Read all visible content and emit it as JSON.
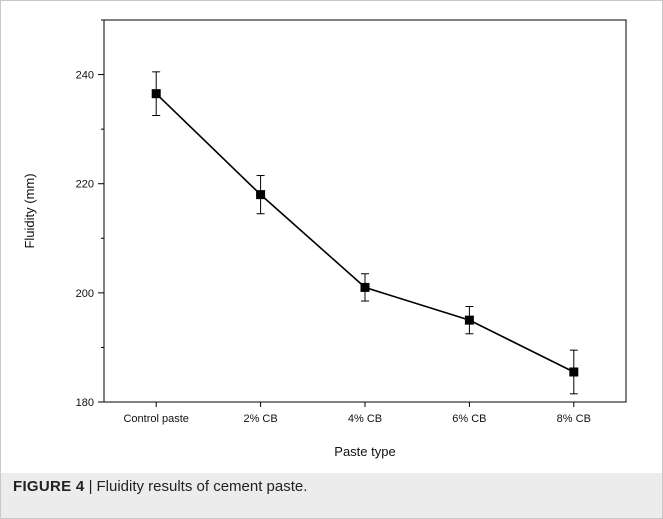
{
  "chart_data": {
    "type": "line",
    "categories": [
      "Control paste",
      "2% CB",
      "4% CB",
      "6% CB",
      "8% CB"
    ],
    "series": [
      {
        "values": [
          236.5,
          218.0,
          201.0,
          195.0,
          185.5
        ],
        "errors": [
          4.0,
          3.5,
          2.5,
          2.5,
          4.0
        ],
        "marker": "square"
      }
    ],
    "xlabel": "Paste type",
    "ylabel": "Fluidity (mm)",
    "ylim": [
      180,
      250
    ],
    "yticks": [
      180,
      200,
      220,
      240
    ],
    "grid": false
  },
  "caption": {
    "label": "FIGURE 4",
    "separator": "|",
    "text": "Fluidity results of cement paste."
  },
  "colors": {
    "line": "#000000",
    "marker": "#000000",
    "caption_band": "#ececec",
    "border": "#c8c8c8"
  }
}
